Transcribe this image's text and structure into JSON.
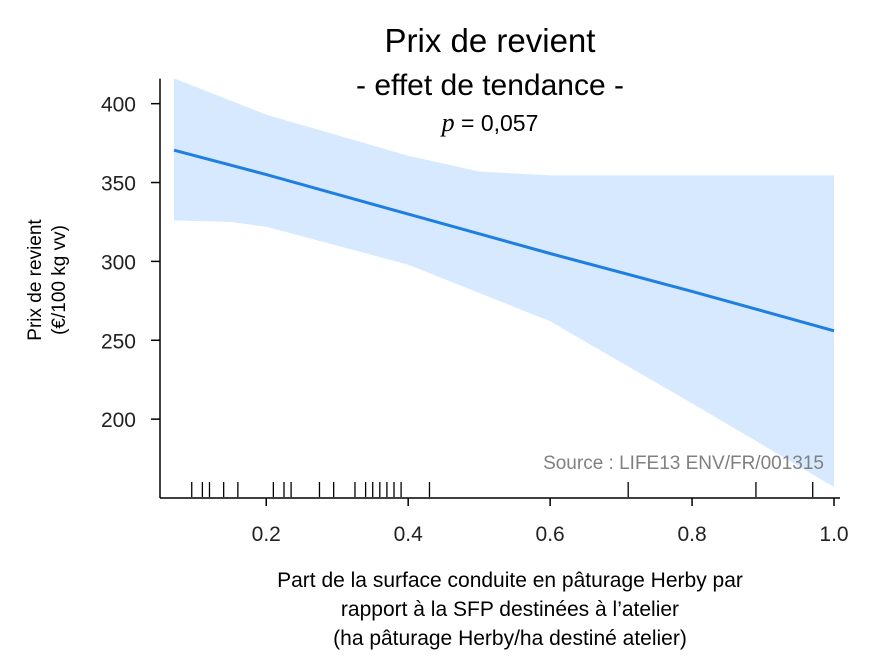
{
  "chart_data": {
    "type": "line",
    "title": "Prix de revient",
    "subtitle": "- effet de tendance -",
    "p_label": "p",
    "p_value": " = 0,057",
    "ylabel": [
      "Prix de revient",
      "(€/100 kg vv)"
    ],
    "xlabel": [
      "Part de la surface conduite en pâturage Herby par",
      "rapport à la SFP destinées à l’atelier",
      "(ha pâturage Herby/ha destiné atelier)"
    ],
    "annotation": "Source : LIFE13 ENV/FR/001315",
    "xlim": [
      0.07,
      1.0
    ],
    "ylim": [
      150,
      415
    ],
    "xticks": [
      {
        "value": 0.2,
        "label": "0.2"
      },
      {
        "value": 0.4,
        "label": "0.4"
      },
      {
        "value": 0.6,
        "label": "0.6"
      },
      {
        "value": 0.8,
        "label": "0.8"
      },
      {
        "value": 1.0,
        "label": "1.0"
      }
    ],
    "yticks": [
      {
        "value": 200,
        "label": "200"
      },
      {
        "value": 250,
        "label": "250"
      },
      {
        "value": 300,
        "label": "300"
      },
      {
        "value": 350,
        "label": "350"
      },
      {
        "value": 400,
        "label": "400"
      }
    ],
    "line": {
      "name": "",
      "color": "#1f7fe0",
      "points": [
        [
          0.07,
          370.5
        ],
        [
          0.2,
          355
        ],
        [
          0.4,
          330
        ],
        [
          0.6,
          305
        ],
        [
          0.8,
          281
        ],
        [
          1.0,
          256
        ]
      ]
    },
    "band": {
      "color": "#d6e9ff",
      "upper": [
        [
          0.07,
          416
        ],
        [
          0.2,
          393
        ],
        [
          0.4,
          367
        ],
        [
          0.5,
          357
        ],
        [
          0.6,
          354.5
        ],
        [
          0.8,
          354.5
        ],
        [
          1.0,
          354.5
        ]
      ],
      "lower": [
        [
          0.07,
          326
        ],
        [
          0.15,
          325
        ],
        [
          0.2,
          322
        ],
        [
          0.4,
          298
        ],
        [
          0.6,
          262
        ],
        [
          0.8,
          210
        ],
        [
          1.0,
          157
        ]
      ]
    },
    "rug": [
      0.095,
      0.11,
      0.12,
      0.14,
      0.16,
      0.21,
      0.225,
      0.235,
      0.275,
      0.295,
      0.325,
      0.34,
      0.35,
      0.36,
      0.37,
      0.38,
      0.39,
      0.43,
      0.71,
      0.89,
      0.97
    ],
    "grid": false
  }
}
